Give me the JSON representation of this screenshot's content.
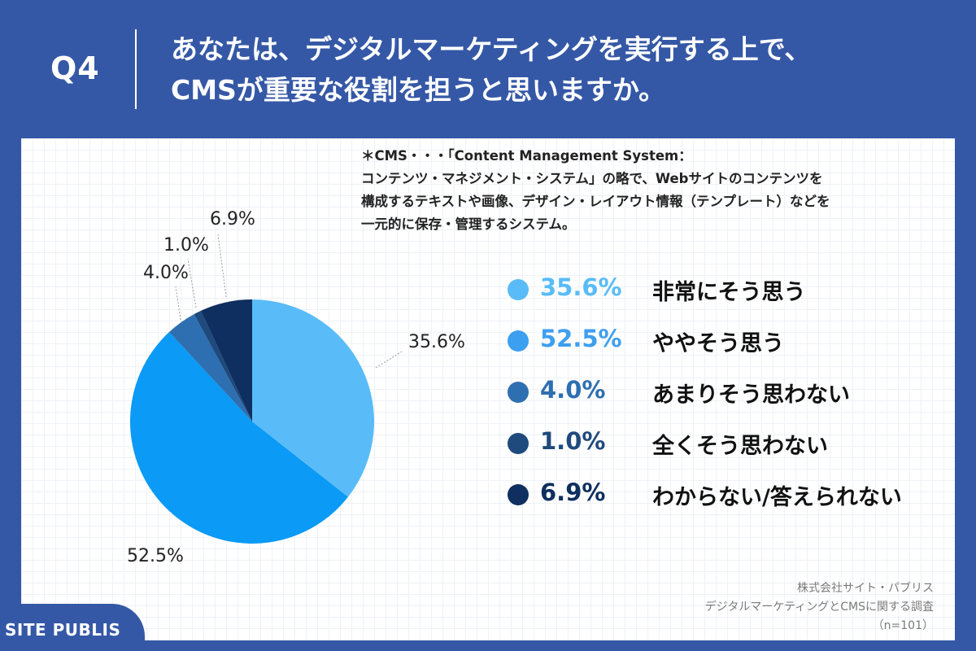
{
  "header": {
    "q_label": "Q4",
    "question_line1": "あなたは、デジタルマーケティングを実行する上で、",
    "question_line2": "CMSが重要な役割を担うと思いますか。"
  },
  "note": {
    "line1": "＊CMS・・・「Content Management System：",
    "line2": "コンテンツ・マネジメント・システム」の略で、Webサイトのコンテンツを",
    "line3": "構成するテキストや画像、デザイン・レイアウト情報（テンプレート）などを",
    "line4": "一元的に保存・管理するシステム。"
  },
  "chart_data": {
    "type": "pie",
    "slices": [
      {
        "label": "非常にそう思う",
        "value": 35.6,
        "display": "35.6%",
        "color": "#59bcf8"
      },
      {
        "label": "ややそう思う",
        "value": 52.5,
        "display": "52.5%",
        "color": "#0b9af5"
      },
      {
        "label": "あまりそう思わない",
        "value": 4.0,
        "display": "4.0%",
        "color": "#2e6fb1"
      },
      {
        "label": "全くそう思わない",
        "value": 1.0,
        "display": "1.0%",
        "color": "#1f4a7d"
      },
      {
        "label": "わからない/答えられない",
        "value": 6.9,
        "display": "6.9%",
        "color": "#0e2f5f"
      }
    ]
  },
  "legend": [
    {
      "pct": "35.6%",
      "text": "非常にそう思う",
      "color": "#59bcf8"
    },
    {
      "pct": "52.5%",
      "text": "ややそう思う",
      "color": "#3d9ff0"
    },
    {
      "pct": "4.0%",
      "text": "あまりそう思わない",
      "color": "#2e6fb1"
    },
    {
      "pct": "1.0%",
      "text": "全くそう思わない",
      "color": "#1f4a7d"
    },
    {
      "pct": "6.9%",
      "text": "わからない/答えられない",
      "color": "#0e2f5f"
    }
  ],
  "source": {
    "line1": "株式会社サイト・パブリス",
    "line2": "デジタルマーケティングとCMSに関する調査",
    "line3": "（n=101）"
  },
  "brand": {
    "name": "SITE PUBLIS"
  }
}
